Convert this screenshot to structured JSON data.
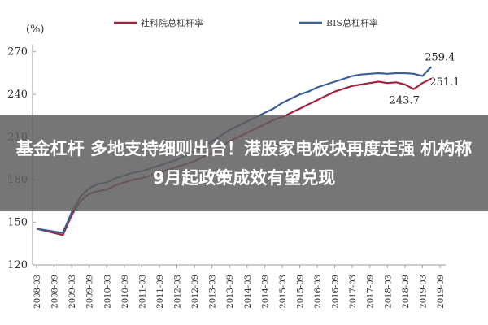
{
  "headline": "基金杠杆 多地支持细则出台！港股家电板块再度走强 机构称9月起政策成效有望兑现",
  "chart_data": {
    "type": "line",
    "unit_label": "(%)",
    "x": [
      "2008-03",
      "2008-09",
      "2009-03",
      "2009-09",
      "2010-03",
      "2010-09",
      "2011-03",
      "2011-09",
      "2012-03",
      "2012-09",
      "2013-03",
      "2013-09",
      "2014-03",
      "2014-09",
      "2015-03",
      "2015-09",
      "2016-03",
      "2016-09",
      "2017-03",
      "2017-09",
      "2018-03",
      "2018-09",
      "2019-03",
      "2019-09"
    ],
    "ylim": [
      120,
      275
    ],
    "yticks": [
      120,
      150,
      180,
      210,
      240,
      270
    ],
    "series": [
      {
        "name": "社科院总杠杆率",
        "color": "#a3243b",
        "x": [
          "2008-03",
          "2008-06",
          "2008-09",
          "2008-12",
          "2009-03",
          "2009-06",
          "2009-09",
          "2009-12",
          "2010-03",
          "2010-06",
          "2010-09",
          "2010-12",
          "2011-03",
          "2011-06",
          "2011-09",
          "2011-12",
          "2012-03",
          "2012-06",
          "2012-09",
          "2012-12",
          "2013-03",
          "2013-06",
          "2013-09",
          "2013-12",
          "2014-03",
          "2014-06",
          "2014-09",
          "2014-12",
          "2015-03",
          "2015-06",
          "2015-09",
          "2015-12",
          "2016-03",
          "2016-06",
          "2016-09",
          "2016-12",
          "2017-03",
          "2017-06",
          "2017-09",
          "2017-12",
          "2018-03",
          "2018-06",
          "2018-09",
          "2018-12",
          "2019-03",
          "2019-06"
        ],
        "values": [
          145.5,
          144,
          142.5,
          141,
          155,
          165,
          170,
          172,
          173,
          176,
          178,
          180,
          181,
          183,
          185,
          187,
          189,
          191,
          193,
          196,
          199,
          203,
          207,
          210,
          213,
          216,
          219,
          222,
          224,
          227,
          230,
          233,
          236,
          239,
          242,
          244,
          246,
          247,
          248,
          249,
          248,
          248.5,
          247,
          243.7,
          248,
          251.1
        ]
      },
      {
        "name": "BIS总杠杆率",
        "color": "#3b5f95",
        "x": [
          "2008-03",
          "2008-06",
          "2008-09",
          "2008-12",
          "2009-03",
          "2009-06",
          "2009-09",
          "2009-12",
          "2010-03",
          "2010-06",
          "2010-09",
          "2010-12",
          "2011-03",
          "2011-06",
          "2011-09",
          "2011-12",
          "2012-03",
          "2012-06",
          "2012-09",
          "2012-12",
          "2013-03",
          "2013-06",
          "2013-09",
          "2013-12",
          "2014-03",
          "2014-06",
          "2014-09",
          "2014-12",
          "2015-03",
          "2015-06",
          "2015-09",
          "2015-12",
          "2016-03",
          "2016-06",
          "2016-09",
          "2016-12",
          "2017-03",
          "2017-06",
          "2017-09",
          "2017-12",
          "2018-03",
          "2018-06",
          "2018-09",
          "2018-12",
          "2019-03",
          "2019-06"
        ],
        "values": [
          145.5,
          144.5,
          143.5,
          142.5,
          157,
          168,
          174,
          177,
          178,
          181,
          183,
          185,
          186,
          188,
          190,
          192,
          194,
          197,
          200,
          203,
          207,
          211,
          215,
          218,
          221,
          224,
          227,
          230,
          234,
          237,
          240,
          242,
          245,
          247,
          249,
          251,
          253,
          254,
          254.5,
          255,
          254.5,
          255,
          255,
          254.5,
          253,
          259.4
        ]
      }
    ],
    "annotations": [
      {
        "text": "259.4",
        "x": "2019-06",
        "y": 259.4
      },
      {
        "text": "251.1",
        "x": "2019-06",
        "y": 251.1
      },
      {
        "text": "243.7",
        "x": "2018-12",
        "y": 243.7
      }
    ],
    "legend_position": "top",
    "grid": false
  }
}
